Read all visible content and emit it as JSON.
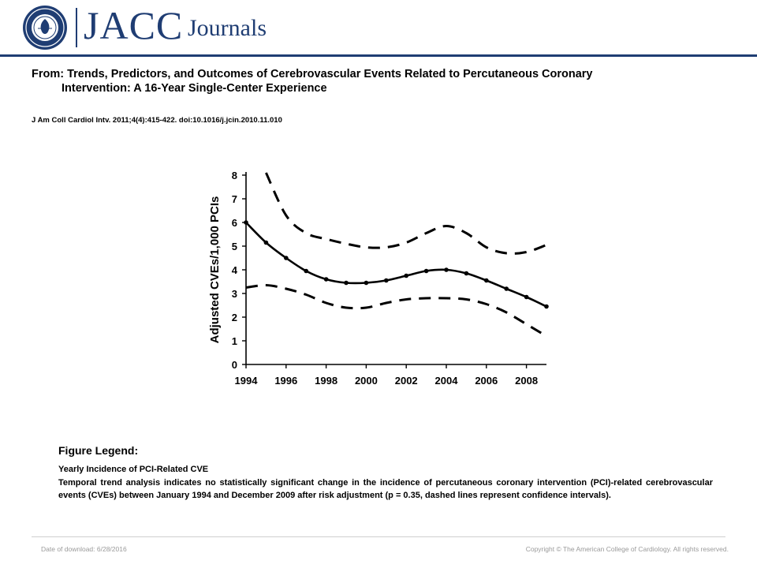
{
  "header": {
    "brand": "JACC",
    "brand_suffix": "Journals",
    "logo_icon": "acc-seal-icon",
    "brand_color": "#1f3d73"
  },
  "article": {
    "title_line1": "From: Trends, Predictors, and Outcomes of Cerebrovascular Events Related to Percutaneous Coronary",
    "title_line2": "Intervention: A 16-Year Single-Center Experience",
    "citation": "J Am Coll Cardiol Intv. 2011;4(4):415-422. doi:10.1016/j.jcin.2010.11.010"
  },
  "chart_data": {
    "type": "line",
    "title": "",
    "xlabel": "",
    "ylabel": "Adjusted CVEs/1,000 PCIs",
    "xlim": [
      1994,
      2009
    ],
    "ylim": [
      0,
      8
    ],
    "x_ticks": [
      "1994",
      "1996",
      "1998",
      "2000",
      "2002",
      "2004",
      "2006",
      "2008"
    ],
    "y_ticks": [
      "0",
      "1",
      "2",
      "3",
      "4",
      "5",
      "6",
      "7",
      "8"
    ],
    "grid": false,
    "series": [
      {
        "style": "solid-with-markers",
        "x": [
          1994,
          1995,
          1996,
          1997,
          1998,
          1999,
          2000,
          2001,
          2002,
          2003,
          2004,
          2005,
          2006,
          2007,
          2008,
          2009
        ],
        "y": [
          6.0,
          5.15,
          4.5,
          3.95,
          3.6,
          3.45,
          3.45,
          3.55,
          3.75,
          3.95,
          4.0,
          3.85,
          3.55,
          3.2,
          2.85,
          2.45
        ]
      },
      {
        "style": "dashed",
        "x": [
          1995,
          1996,
          1997,
          1998,
          1999,
          2000,
          2001,
          2002,
          2003,
          2004,
          2005,
          2006,
          2007,
          2008,
          2009
        ],
        "y": [
          8.1,
          6.3,
          5.55,
          5.3,
          5.1,
          4.95,
          4.95,
          5.15,
          5.55,
          5.85,
          5.55,
          4.95,
          4.7,
          4.75,
          5.05
        ]
      },
      {
        "style": "dashed",
        "x": [
          1994,
          1995,
          1996,
          1997,
          1998,
          1999,
          2000,
          2001,
          2002,
          2003,
          2004,
          2005,
          2006,
          2007,
          2008,
          2009
        ],
        "y": [
          3.25,
          3.35,
          3.2,
          2.95,
          2.6,
          2.4,
          2.4,
          2.6,
          2.75,
          2.8,
          2.8,
          2.75,
          2.55,
          2.2,
          1.7,
          1.2
        ]
      }
    ]
  },
  "legend": {
    "heading": "Figure Legend:",
    "title": "Yearly Incidence of PCI-Related CVE",
    "body": "Temporal trend analysis indicates no statistically significant change in the incidence of percutaneous coronary intervention (PCI)-related cerebrovascular events (CVEs) between January 1994 and December 2009 after risk adjustment (p = 0.35, dashed lines represent confidence intervals)."
  },
  "footer": {
    "date": "Date of download:  6/28/2016",
    "copyright": "Copyright © The American College of Cardiology. All rights reserved."
  }
}
